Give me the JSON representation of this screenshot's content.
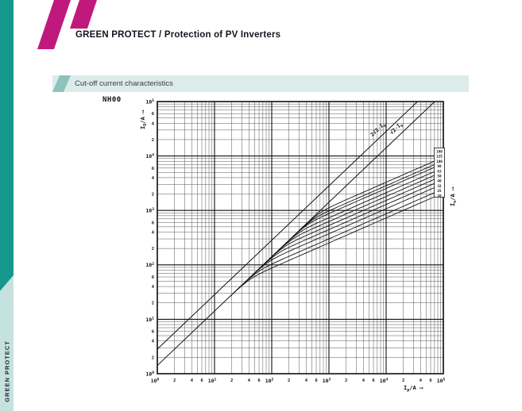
{
  "header": {
    "title": "GREEN PROTECT / Protection of PV Inverters"
  },
  "banner": {
    "label": "Cut-off current characteristics"
  },
  "sidebar": {
    "label": "GREEN PROTECT"
  },
  "colors": {
    "brand_magenta": "#c0197d",
    "brand_teal": "#17988e",
    "brand_teal_light": "#c6e2df",
    "banner_bg": "#dcecea",
    "banner_accent": "#8cc3bd",
    "chart_ink": "#111111",
    "grid_minor": "#555555"
  },
  "chart_data": {
    "type": "line",
    "scale": "log-log",
    "title": "NH00",
    "xlabel": {
      "main": "I",
      "sub": "p",
      "suffix": "/A",
      "arrow": "⟶"
    },
    "ylabel": {
      "main": "I",
      "sub": "D",
      "suffix": "/A",
      "arrow": "⟶"
    },
    "right_axis_label": {
      "main": "I",
      "sub": "n",
      "suffix": "/A",
      "arrow": "⟶"
    },
    "xlim": [
      1,
      100000
    ],
    "ylim": [
      1,
      100000
    ],
    "grid": true,
    "x_tick_sequence": [
      "10^0",
      "2",
      "4",
      "6",
      "10^1",
      "2",
      "4",
      "6",
      "10^2",
      "2",
      "4",
      "6",
      "10^3",
      "2",
      "4",
      "6",
      "10^4",
      "2",
      "4",
      "6",
      "10^5"
    ],
    "y_tick_sequence": [
      "10^5",
      "6",
      "4",
      "2",
      "10^4",
      "6",
      "4",
      "2",
      "10^3",
      "6",
      "4",
      "2",
      "10^2",
      "6",
      "4",
      "2",
      "10^1",
      "6",
      "4",
      "2",
      "10^0"
    ],
    "decade_exponents": [
      0,
      1,
      2,
      3,
      4,
      5
    ],
    "minor_labels": [
      2,
      4,
      6
    ],
    "reference_lines": [
      {
        "label_pre": "2√2·I",
        "label_sub": "p",
        "factor": 2.828
      },
      {
        "label_pre": "√2·I",
        "label_sub": "p",
        "factor": 1.414
      }
    ],
    "curve_slope": 0.46,
    "series": [
      {
        "name": "160",
        "end_value": 9500
      },
      {
        "name": "125",
        "end_value": 8200
      },
      {
        "name": "100",
        "end_value": 7300
      },
      {
        "name": "80",
        "end_value": 6100
      },
      {
        "name": "63",
        "end_value": 5200
      },
      {
        "name": "50",
        "end_value": 4400
      },
      {
        "name": "40",
        "end_value": 3700
      },
      {
        "name": "32",
        "end_value": 3100
      },
      {
        "name": "25",
        "end_value": 2500
      },
      {
        "name": "20",
        "end_value": 2100
      }
    ],
    "legend": {
      "position": "right-edge-box",
      "values": [
        "160",
        "125",
        "100",
        "80",
        "63",
        "50",
        "40",
        "32",
        "25",
        "20"
      ]
    }
  }
}
